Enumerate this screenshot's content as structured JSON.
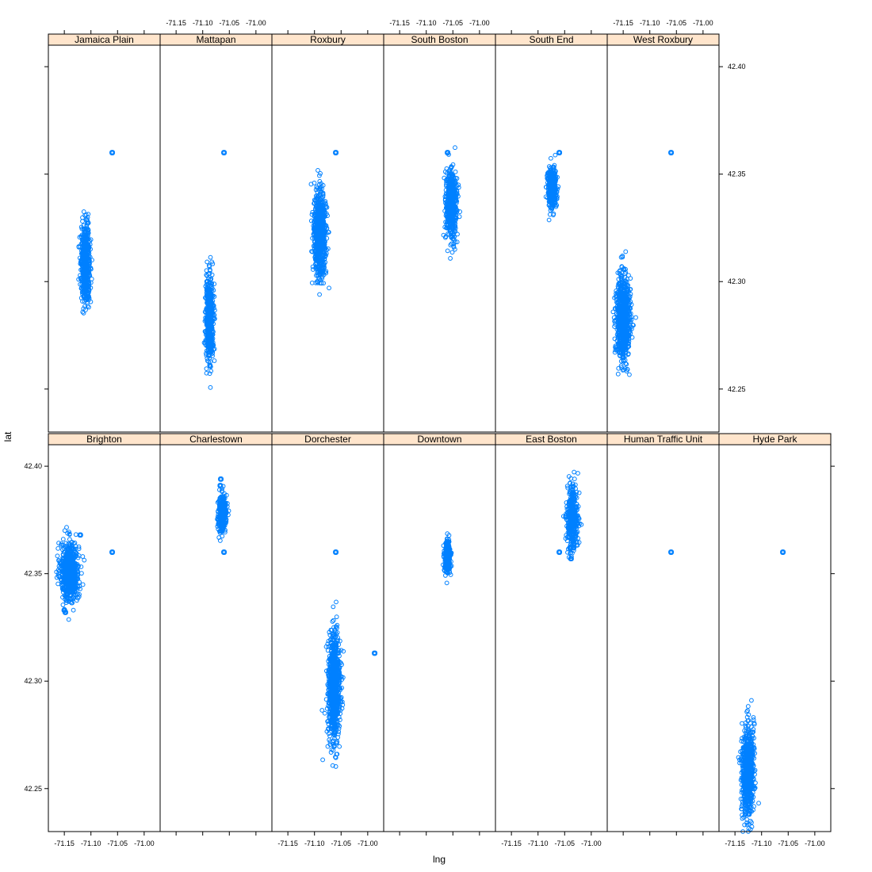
{
  "chart_data": {
    "type": "scatter",
    "xlabel": "lng",
    "ylabel": "lat",
    "xlim": [
      -71.18,
      -70.97
    ],
    "ylim": [
      42.23,
      42.41
    ],
    "x_ticks": [
      -71.15,
      -71.1,
      -71.05,
      -71.0
    ],
    "x_tick_labels": [
      "-71.15",
      "-71.10",
      "-71.05",
      "-71.00"
    ],
    "y_ticks": [
      42.25,
      42.3,
      42.35,
      42.4
    ],
    "y_tick_labels": [
      "42.25",
      "42.30",
      "42.35",
      "42.40"
    ],
    "colors": {
      "point": "#0080ff",
      "strip": "#ffe5cc",
      "frame": "#000000"
    },
    "outlier_point": {
      "lng": -71.06,
      "lat": 42.36
    },
    "panels": [
      {
        "name": "Brighton",
        "row": 0,
        "col": 0,
        "blobs": [
          {
            "lng": -71.14,
            "lat": 42.351,
            "sd_lng": 0.0085,
            "sd_lat": 0.0068,
            "n": 700
          }
        ],
        "points": [
          {
            "lng": -71.06,
            "lat": 42.36
          },
          {
            "lng": -71.15,
            "lat": 42.333
          },
          {
            "lng": -71.148,
            "lat": 42.332
          },
          {
            "lng": -71.12,
            "lat": 42.368
          }
        ]
      },
      {
        "name": "Charlestown",
        "row": 0,
        "col": 1,
        "blobs": [
          {
            "lng": -71.063,
            "lat": 42.378,
            "sd_lng": 0.0042,
            "sd_lat": 0.0045,
            "n": 260
          }
        ],
        "points": [
          {
            "lng": -71.06,
            "lat": 42.36
          },
          {
            "lng": -71.066,
            "lat": 42.394
          },
          {
            "lng": -71.067,
            "lat": 42.391
          }
        ]
      },
      {
        "name": "Dorchester",
        "row": 0,
        "col": 2,
        "blobs": [
          {
            "lng": -71.063,
            "lat": 42.297,
            "sd_lng": 0.0055,
            "sd_lat": 0.012,
            "n": 900
          }
        ],
        "points": [
          {
            "lng": -71.06,
            "lat": 42.36
          },
          {
            "lng": -70.987,
            "lat": 42.313
          }
        ]
      },
      {
        "name": "Downtown",
        "row": 0,
        "col": 3,
        "blobs": [
          {
            "lng": -71.06,
            "lat": 42.358,
            "sd_lng": 0.0028,
            "sd_lat": 0.0038,
            "n": 320
          }
        ],
        "points": []
      },
      {
        "name": "East Boston",
        "row": 0,
        "col": 4,
        "blobs": [
          {
            "lng": -71.035,
            "lat": 42.376,
            "sd_lng": 0.0052,
            "sd_lat": 0.0075,
            "n": 380
          }
        ],
        "points": [
          {
            "lng": -71.06,
            "lat": 42.36
          },
          {
            "lng": -71.04,
            "lat": 42.362
          },
          {
            "lng": -71.038,
            "lat": 42.357
          }
        ]
      },
      {
        "name": "Human Traffic Unit",
        "row": 0,
        "col": 5,
        "blobs": [],
        "points": [
          {
            "lng": -71.06,
            "lat": 42.36
          }
        ]
      },
      {
        "name": "Hyde Park",
        "row": 0,
        "col": 6,
        "blobs": [
          {
            "lng": -71.126,
            "lat": 42.258,
            "sd_lng": 0.0055,
            "sd_lat": 0.011,
            "n": 650
          }
        ],
        "points": [
          {
            "lng": -71.06,
            "lat": 42.36
          }
        ]
      },
      {
        "name": "Jamaica Plain",
        "row": 1,
        "col": 0,
        "blobs": [
          {
            "lng": -71.11,
            "lat": 42.309,
            "sd_lng": 0.0045,
            "sd_lat": 0.0085,
            "n": 500
          }
        ],
        "points": [
          {
            "lng": -71.06,
            "lat": 42.36
          },
          {
            "lng": -71.105,
            "lat": 42.293
          }
        ]
      },
      {
        "name": "Mattapan",
        "row": 1,
        "col": 1,
        "blobs": [
          {
            "lng": -71.087,
            "lat": 42.283,
            "sd_lng": 0.0038,
            "sd_lat": 0.0095,
            "n": 500
          }
        ],
        "points": [
          {
            "lng": -71.06,
            "lat": 42.36
          }
        ]
      },
      {
        "name": "Roxbury",
        "row": 1,
        "col": 2,
        "blobs": [
          {
            "lng": -71.09,
            "lat": 42.322,
            "sd_lng": 0.0055,
            "sd_lat": 0.0095,
            "n": 800
          }
        ],
        "points": [
          {
            "lng": -71.06,
            "lat": 42.36
          }
        ]
      },
      {
        "name": "South Boston",
        "row": 1,
        "col": 3,
        "blobs": [
          {
            "lng": -71.053,
            "lat": 42.336,
            "sd_lng": 0.0055,
            "sd_lat": 0.0085,
            "n": 450
          }
        ],
        "points": [
          {
            "lng": -71.06,
            "lat": 42.36
          }
        ]
      },
      {
        "name": "South End",
        "row": 1,
        "col": 4,
        "blobs": [
          {
            "lng": -71.074,
            "lat": 42.343,
            "sd_lng": 0.0042,
            "sd_lat": 0.0045,
            "n": 420
          }
        ],
        "points": [
          {
            "lng": -71.06,
            "lat": 42.36
          }
        ]
      },
      {
        "name": "West Roxbury",
        "row": 1,
        "col": 5,
        "blobs": [
          {
            "lng": -71.15,
            "lat": 42.283,
            "sd_lng": 0.0065,
            "sd_lat": 0.0095,
            "n": 800
          }
        ],
        "points": [
          {
            "lng": -71.06,
            "lat": 42.36
          }
        ]
      }
    ]
  }
}
